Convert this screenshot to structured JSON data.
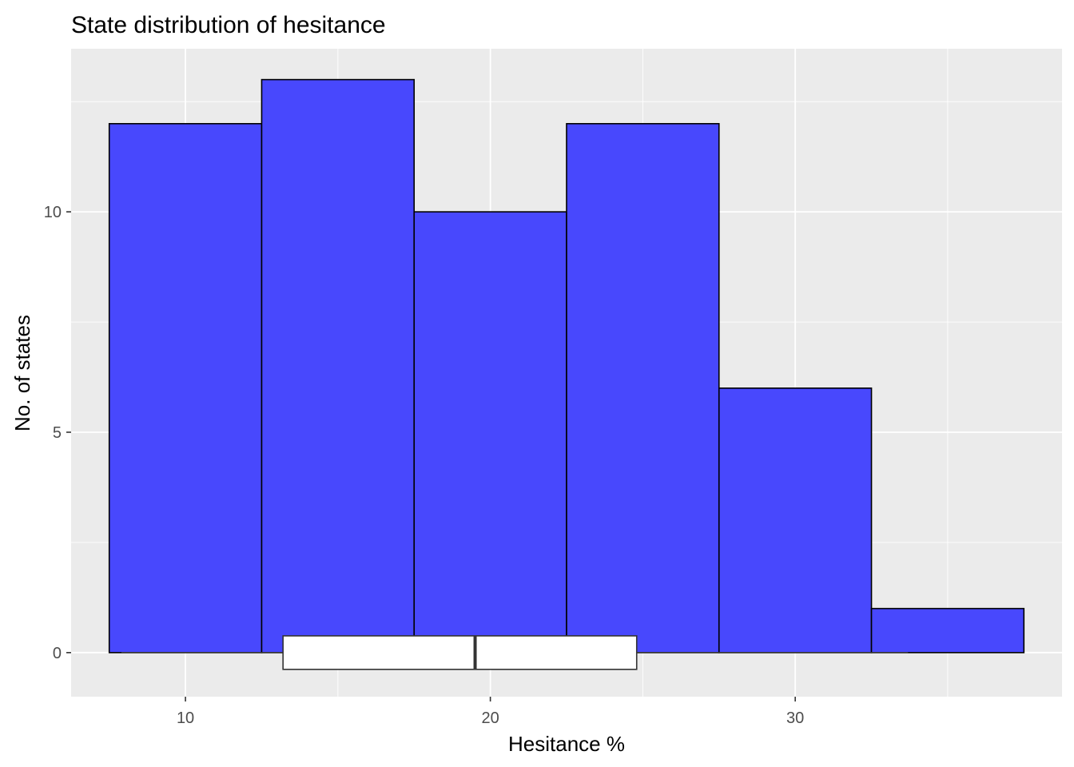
{
  "chart_data": {
    "type": "bar",
    "title": "State distribution of hesitance",
    "xlabel": "Hesitance %",
    "ylabel": "No. of states",
    "xlim": [
      6.25,
      38.75
    ],
    "ylim": [
      -1.0,
      13.7
    ],
    "x_ticks": [
      10,
      20,
      30
    ],
    "x_tick_labels": [
      "10",
      "20",
      "30"
    ],
    "y_ticks": [
      0,
      5,
      10
    ],
    "y_tick_labels": [
      "0",
      "5",
      "10"
    ],
    "bins": [
      {
        "x0": 7.5,
        "x1": 12.5,
        "count": 12
      },
      {
        "x0": 12.5,
        "x1": 17.5,
        "count": 13
      },
      {
        "x0": 17.5,
        "x1": 22.5,
        "count": 10
      },
      {
        "x0": 22.5,
        "x1": 27.5,
        "count": 12
      },
      {
        "x0": 27.5,
        "x1": 32.5,
        "count": 6
      },
      {
        "x0": 32.5,
        "x1": 37.5,
        "count": 1
      }
    ],
    "boxplot": {
      "q1": 13.2,
      "median": 19.5,
      "q3": 24.8,
      "whisker_low": 7.9,
      "whisker_high": 33.7,
      "y_min": -0.38,
      "y_max": 0.38
    },
    "bar_fill": "#4848fd",
    "bar_stroke": "#000000",
    "panel_background": "#ebebeb",
    "grid": true,
    "grid_color": "#ffffff"
  }
}
